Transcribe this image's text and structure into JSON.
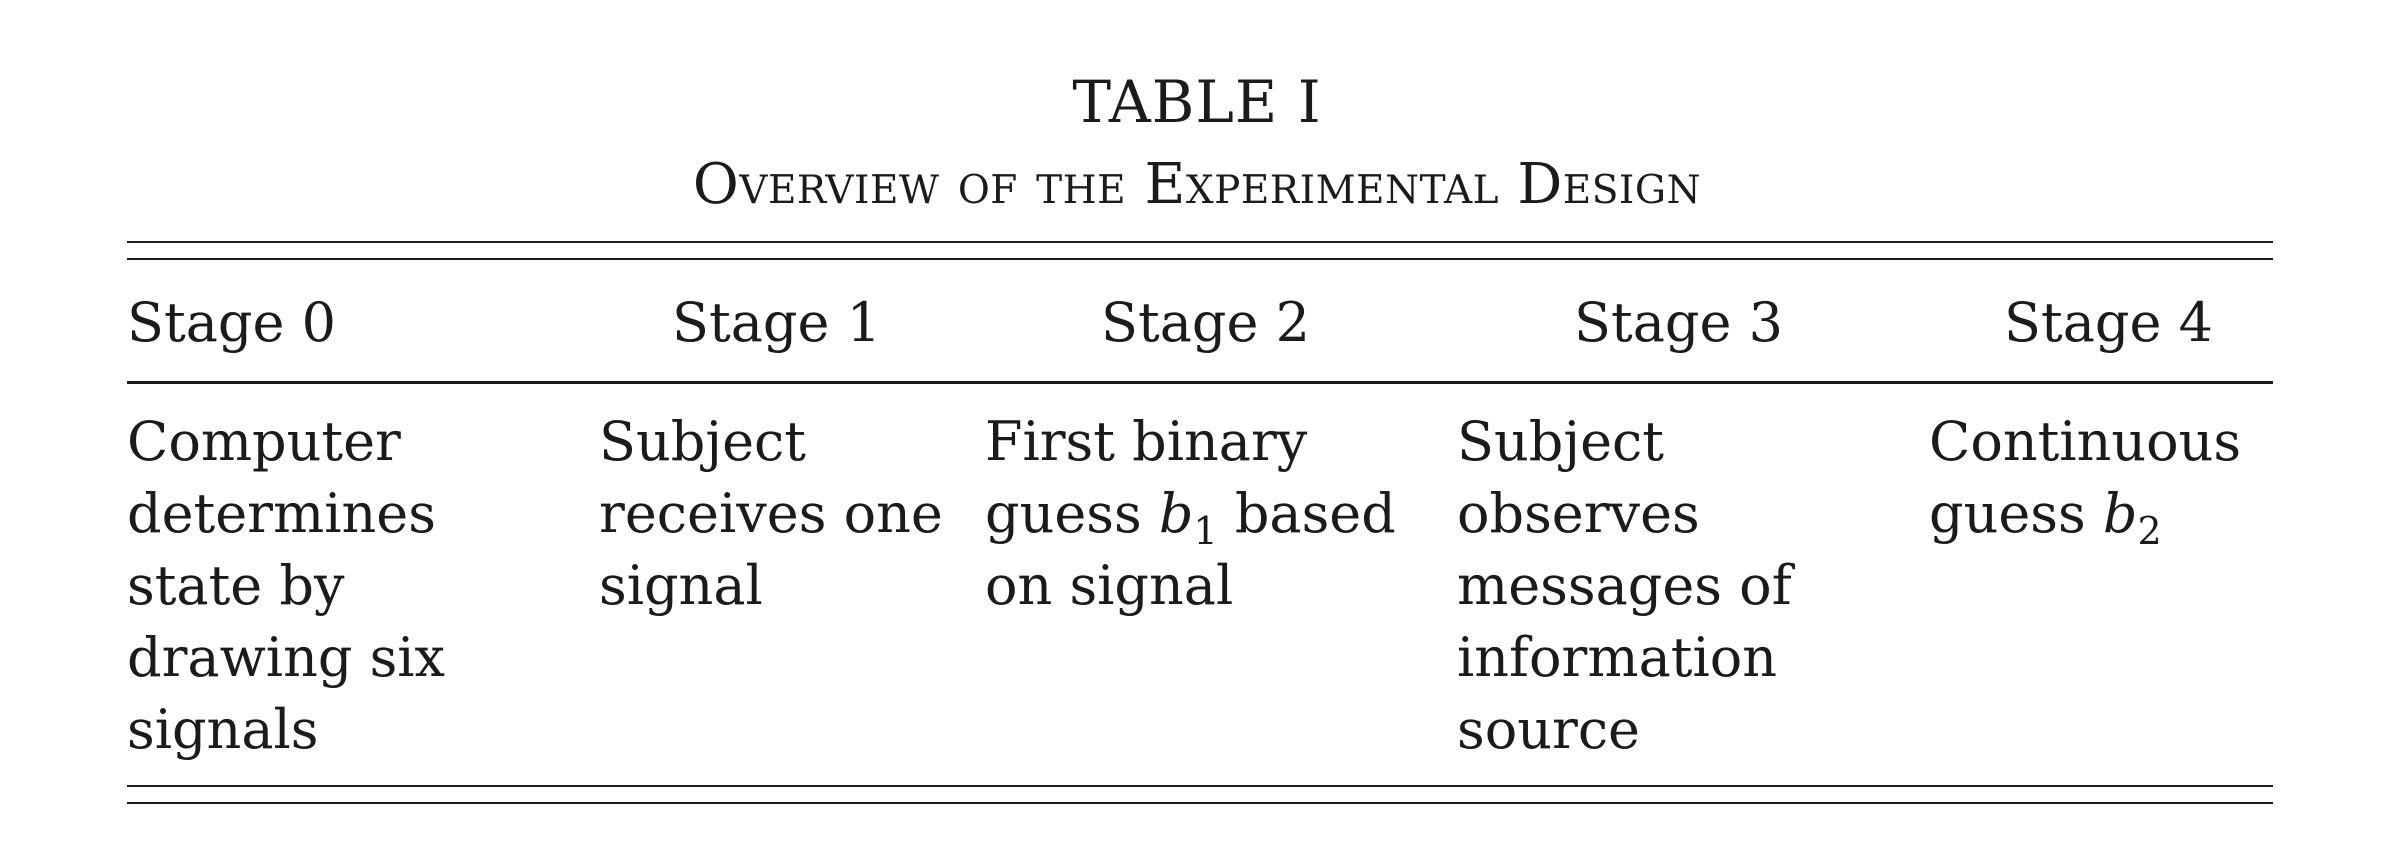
{
  "table": {
    "title": "TABLE I",
    "subtitle": "Overview of the Experimental Design",
    "headers": [
      "Stage 0",
      "Stage 1",
      "Stage 2",
      "Stage 3",
      "Stage 4"
    ],
    "cells": [
      {
        "lines": [
          "Computer",
          "determines",
          "state by",
          "drawing six",
          "signals"
        ]
      },
      {
        "lines": [
          "Subject",
          "receives one",
          "signal"
        ]
      },
      {
        "line1": "First binary",
        "line2_pre": "guess ",
        "line2_var": "b",
        "line2_sub": "1",
        "line2_post": " based",
        "line3": "on signal"
      },
      {
        "lines": [
          "Subject",
          "observes",
          "messages of",
          "information",
          "source"
        ]
      },
      {
        "line1": "Continuous",
        "line2_pre": "guess ",
        "line2_var": "b",
        "line2_sub": "2"
      }
    ]
  }
}
